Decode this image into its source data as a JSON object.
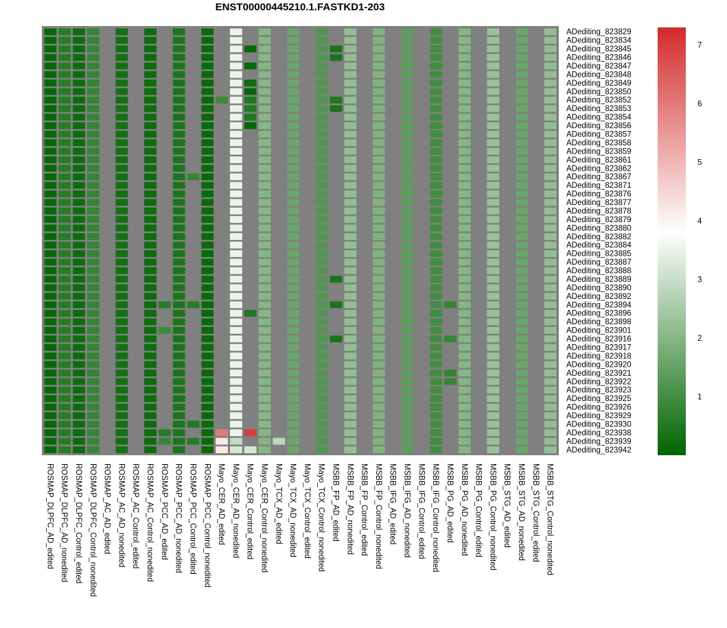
{
  "chart_data": {
    "type": "heatmap",
    "title": "ENST00000445210.1.FASTKD1-203",
    "rows": [
      "ADediting_823829",
      "ADediting_823834",
      "ADediting_823845",
      "ADediting_823846",
      "ADediting_823847",
      "ADediting_823848",
      "ADediting_823849",
      "ADediting_823850",
      "ADediting_823852",
      "ADediting_823853",
      "ADediting_823854",
      "ADediting_823856",
      "ADediting_823857",
      "ADediting_823858",
      "ADediting_823859",
      "ADediting_823861",
      "ADediting_823862",
      "ADediting_823867",
      "ADediting_823871",
      "ADediting_823876",
      "ADediting_823877",
      "ADediting_823878",
      "ADediting_823879",
      "ADediting_823880",
      "ADediting_823882",
      "ADediting_823884",
      "ADediting_823885",
      "ADediting_823887",
      "ADediting_823888",
      "ADediting_823889",
      "ADediting_823890",
      "ADediting_823892",
      "ADediting_823894",
      "ADediting_823896",
      "ADediting_823898",
      "ADediting_823901",
      "ADediting_823916",
      "ADediting_823917",
      "ADediting_823918",
      "ADediting_823920",
      "ADediting_823921",
      "ADediting_823922",
      "ADediting_823923",
      "ADediting_823925",
      "ADediting_823926",
      "ADediting_823929",
      "ADediting_823930",
      "ADediting_823938",
      "ADediting_823939",
      "ADediting_823942"
    ],
    "columns": [
      "ROSMAP_DLPFC_AD_edited",
      "ROSMAP_DLPFC_AD_nonedited",
      "ROSMAP_DLPFC_Control_edited",
      "ROSMAP_DLPFC_Control_nonedited",
      "ROSMAP_AC_AD_edited",
      "ROSMAP_AC_AD_nonedited",
      "ROSMAP_AC_Control_edited",
      "ROSMAP_AC_Control_nonedited",
      "ROSMAP_PCC_AD_edited",
      "ROSMAP_PCC_AD_nonedited",
      "ROSMAP_PCC_Control_edited",
      "ROSMAP_PCC_Control_nonedited",
      "Mayo_CER_AD_edited",
      "Mayo_CER_AD_nonedited",
      "Mayo_CER_Control_edited",
      "Mayo_CER_Control_nonedited",
      "Mayo_TCX_AD_edited",
      "Mayo_TCX_AD_nonedited",
      "Mayo_TCX_Control_edited",
      "Mayo_TCX_Control_nonedited",
      "MSBB_FP_AD_edited",
      "MSBB_FP_AD_nonedited",
      "MSBB_FP_Control_edited",
      "MSBB_FP_Control_nonedited",
      "MSBB_IFG_AD_edited",
      "MSBB_IFG_AD_nonedited",
      "MSBB_IFG_Control_edited",
      "MSBB_IFG_Control_nonedited",
      "MSBB_PG_AD_edited",
      "MSBB_PG_AD_nonedited",
      "MSBB_PG_Control_edited",
      "MSBB_PG_Control_nonedited",
      "MSBB_STG_AD_edited",
      "MSBB_STG_AD_nonedited",
      "MSBB_STG_Control_edited",
      "MSBB_STG_Control_nonedited"
    ],
    "column_defaults": [
      0.1,
      0.6,
      0.2,
      0.8,
      null,
      0.3,
      null,
      0.2,
      null,
      0.4,
      null,
      0.15,
      null,
      3.5,
      null,
      2.0,
      null,
      1.6,
      null,
      1.2,
      null,
      2.2,
      null,
      1.9,
      null,
      1.4,
      null,
      1.0,
      null,
      2.0,
      null,
      2.3,
      null,
      1.6,
      null,
      2.2
    ],
    "overrides": [
      {
        "row": "ADediting_823845",
        "column": "Mayo_CER_Control_edited",
        "value": 0.1
      },
      {
        "row": "ADediting_823845",
        "column": "MSBB_FP_AD_edited",
        "value": 0.4
      },
      {
        "row": "ADediting_823846",
        "column": "MSBB_FP_AD_edited",
        "value": 0.4
      },
      {
        "row": "ADediting_823847",
        "column": "Mayo_CER_Control_edited",
        "value": 0.1
      },
      {
        "row": "ADediting_823849",
        "column": "Mayo_CER_Control_edited",
        "value": 0.2
      },
      {
        "row": "ADediting_823850",
        "column": "Mayo_CER_Control_edited",
        "value": 0.1
      },
      {
        "row": "ADediting_823852",
        "column": "Mayo_CER_AD_edited",
        "value": 0.9
      },
      {
        "row": "ADediting_823852",
        "column": "Mayo_CER_Control_edited",
        "value": 0.5
      },
      {
        "row": "ADediting_823852",
        "column": "MSBB_FP_AD_edited",
        "value": 0.5
      },
      {
        "row": "ADediting_823853",
        "column": "Mayo_CER_Control_edited",
        "value": 0.5
      },
      {
        "row": "ADediting_823853",
        "column": "MSBB_FP_AD_edited",
        "value": 0.4
      },
      {
        "row": "ADediting_823854",
        "column": "Mayo_CER_Control_edited",
        "value": 0.5
      },
      {
        "row": "ADediting_823856",
        "column": "Mayo_CER_Control_edited",
        "value": 0.1
      },
      {
        "row": "ADediting_823867",
        "column": "ROSMAP_PCC_Control_edited",
        "value": 0.8
      },
      {
        "row": "ADediting_823889",
        "column": "MSBB_FP_AD_edited",
        "value": 0.4
      },
      {
        "row": "ADediting_823894",
        "column": "ROSMAP_PCC_AD_edited",
        "value": 0.6
      },
      {
        "row": "ADediting_823894",
        "column": "ROSMAP_PCC_Control_edited",
        "value": 0.6
      },
      {
        "row": "ADediting_823894",
        "column": "MSBB_FP_AD_edited",
        "value": 0.4
      },
      {
        "row": "ADediting_823894",
        "column": "MSBB_PG_AD_edited",
        "value": 0.8
      },
      {
        "row": "ADediting_823896",
        "column": "Mayo_CER_Control_edited",
        "value": 0.5
      },
      {
        "row": "ADediting_823901",
        "column": "ROSMAP_PCC_AD_edited",
        "value": 0.9
      },
      {
        "row": "ADediting_823916",
        "column": "MSBB_FP_AD_edited",
        "value": 0.4
      },
      {
        "row": "ADediting_823916",
        "column": "MSBB_PG_AD_edited",
        "value": 0.8
      },
      {
        "row": "ADediting_823921",
        "column": "MSBB_PG_AD_edited",
        "value": 0.8
      },
      {
        "row": "ADediting_823922",
        "column": "MSBB_PG_AD_edited",
        "value": 0.8
      },
      {
        "row": "ADediting_823930",
        "column": "ROSMAP_PCC_Control_edited",
        "value": 0.5
      },
      {
        "row": "ADediting_823938",
        "column": "ROSMAP_PCC_AD_edited",
        "value": 0.6
      },
      {
        "row": "ADediting_823938",
        "column": "Mayo_CER_AD_edited",
        "value": 6.0
      },
      {
        "row": "ADediting_823938",
        "column": "Mayo_CER_Control_edited",
        "value": 7.0
      },
      {
        "row": "ADediting_823939",
        "column": "ROSMAP_PCC_AD_edited",
        "value": 0.8
      },
      {
        "row": "ADediting_823939",
        "column": "ROSMAP_PCC_Control_edited",
        "value": 0.6
      },
      {
        "row": "ADediting_823939",
        "column": "Mayo_CER_AD_edited",
        "value": 4.2
      },
      {
        "row": "ADediting_823939",
        "column": "Mayo_CER_AD_nonedited",
        "value": 2.9
      },
      {
        "row": "ADediting_823939",
        "column": "Mayo_TCX_AD_edited",
        "value": 2.8
      },
      {
        "row": "ADediting_823942",
        "column": "Mayo_CER_AD_edited",
        "value": 4.2
      },
      {
        "row": "ADediting_823942",
        "column": "Mayo_CER_AD_nonedited",
        "value": 3.2
      },
      {
        "row": "ADediting_823942",
        "column": "Mayo_CER_Control_edited",
        "value": 3.2
      }
    ],
    "missing_color": "#808080",
    "colorscale": {
      "min": 0,
      "max": 7.3,
      "stops": [
        {
          "value": 0.0,
          "color": "#006400"
        },
        {
          "value": 3.8,
          "color": "#ffffff"
        },
        {
          "value": 7.3,
          "color": "#d22b2b"
        }
      ],
      "ticks": [
        1,
        2,
        3,
        4,
        5,
        6,
        7
      ]
    },
    "legend_position": "right"
  }
}
